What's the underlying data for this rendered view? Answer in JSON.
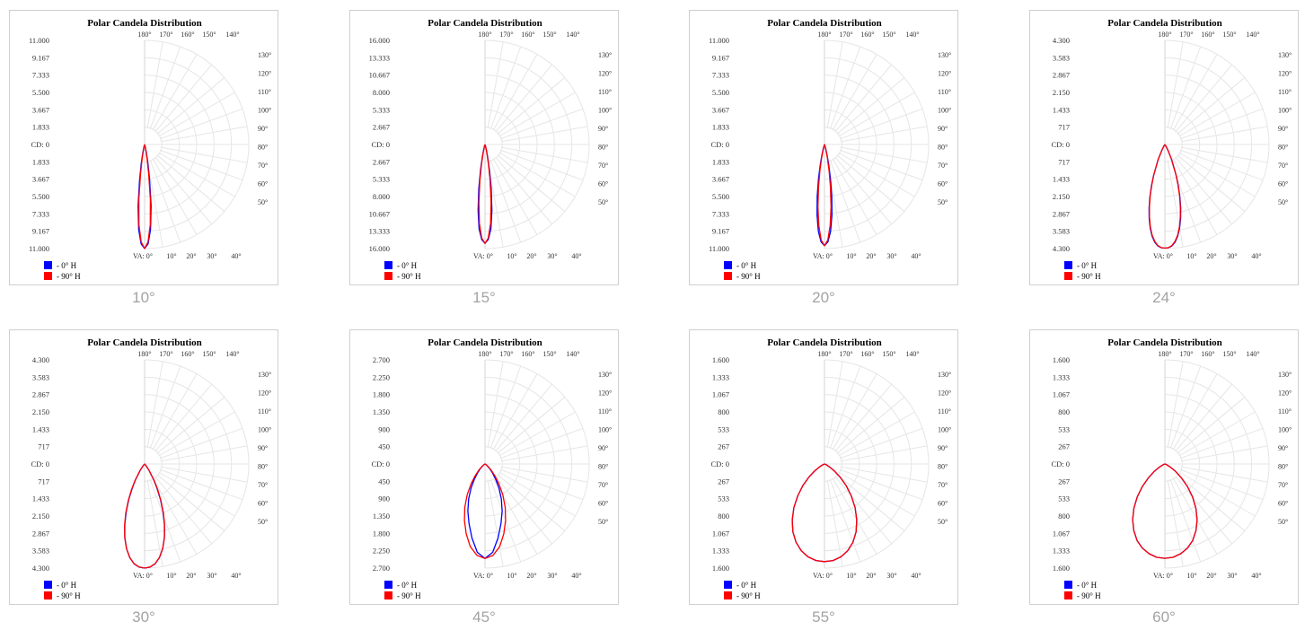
{
  "chart_data": [
    {
      "type": "polar",
      "title": "Polar Candela Distribution",
      "beam_label": "10°",
      "cd_ticks": [
        "11.000",
        "9.167",
        "7.333",
        "5.500",
        "3.667",
        "1.833",
        "CD: 0",
        "1.833",
        "3.667",
        "5.500",
        "7.333",
        "9.167",
        "11.000"
      ],
      "top_angle_labels": [
        "180°",
        "170°",
        "160°",
        "150°",
        "140°"
      ],
      "right_angle_labels": [
        "130°",
        "120°",
        "110°",
        "100°",
        "90°",
        "80°",
        "70°",
        "60°",
        "50°"
      ],
      "bottom_angle_labels": [
        "VA: 0°",
        "10°",
        "20°",
        "30°",
        "40°"
      ],
      "series": [
        {
          "name": "- 0° H",
          "color": "#0000ff",
          "angles": [
            0,
            2,
            4,
            6,
            8,
            10,
            12,
            14,
            16,
            18,
            20,
            25,
            30
          ],
          "values": [
            11000,
            10500,
            9000,
            6500,
            3800,
            2000,
            1000,
            450,
            200,
            90,
            40,
            10,
            0
          ]
        },
        {
          "name": "- 90° H",
          "color": "#ff0000",
          "angles": [
            0,
            2,
            4,
            6,
            8,
            10,
            12,
            14,
            16,
            18,
            20,
            25,
            30
          ],
          "values": [
            11000,
            10300,
            8500,
            5800,
            3100,
            1500,
            700,
            300,
            130,
            60,
            30,
            8,
            0
          ]
        }
      ]
    },
    {
      "type": "polar",
      "title": "Polar Candela Distribution",
      "beam_label": "15°",
      "cd_ticks": [
        "16.000",
        "13.333",
        "10.667",
        "8.000",
        "5.333",
        "2.667",
        "CD: 0",
        "2.667",
        "5.333",
        "8.000",
        "10.667",
        "13.333",
        "16.000"
      ],
      "top_angle_labels": [
        "180°",
        "170°",
        "160°",
        "150°",
        "140°"
      ],
      "right_angle_labels": [
        "130°",
        "120°",
        "110°",
        "100°",
        "90°",
        "80°",
        "70°",
        "60°",
        "50°"
      ],
      "bottom_angle_labels": [
        "VA: 0°",
        "10°",
        "20°",
        "30°",
        "40°"
      ],
      "series": [
        {
          "name": "- 0° H",
          "color": "#0000ff",
          "angles": [
            0,
            2,
            4,
            6,
            8,
            10,
            12,
            14,
            16,
            18,
            20,
            25,
            30
          ],
          "values": [
            15200,
            14600,
            13000,
            10200,
            6800,
            3900,
            2000,
            900,
            400,
            160,
            60,
            15,
            0
          ]
        },
        {
          "name": "- 90° H",
          "color": "#ff0000",
          "angles": [
            0,
            2,
            4,
            6,
            8,
            10,
            12,
            14,
            16,
            18,
            20,
            25,
            30
          ],
          "values": [
            15200,
            14400,
            12200,
            9000,
            5600,
            3000,
            1400,
            600,
            250,
            100,
            40,
            10,
            0
          ]
        }
      ]
    },
    {
      "type": "polar",
      "title": "Polar Candela Distribution",
      "beam_label": "20°",
      "cd_ticks": [
        "11.000",
        "9.167",
        "7.333",
        "5.500",
        "3.667",
        "1.833",
        "CD: 0",
        "1.833",
        "3.667",
        "5.500",
        "7.333",
        "9.167",
        "11.000"
      ],
      "top_angle_labels": [
        "180°",
        "170°",
        "160°",
        "150°",
        "140°"
      ],
      "right_angle_labels": [
        "130°",
        "120°",
        "110°",
        "100°",
        "90°",
        "80°",
        "70°",
        "60°",
        "50°"
      ],
      "bottom_angle_labels": [
        "VA: 0°",
        "10°",
        "20°",
        "30°",
        "40°"
      ],
      "series": [
        {
          "name": "- 0° H",
          "color": "#0000ff",
          "angles": [
            0,
            2,
            4,
            6,
            8,
            10,
            12,
            14,
            16,
            18,
            20,
            25,
            30
          ],
          "values": [
            10700,
            10300,
            9200,
            7500,
            5500,
            3600,
            2100,
            1100,
            500,
            220,
            90,
            20,
            0
          ]
        },
        {
          "name": "- 90° H",
          "color": "#ff0000",
          "angles": [
            0,
            2,
            4,
            6,
            8,
            10,
            12,
            14,
            16,
            18,
            20,
            25,
            30
          ],
          "values": [
            10700,
            10100,
            8600,
            6600,
            4500,
            2800,
            1500,
            700,
            300,
            120,
            50,
            12,
            0
          ]
        }
      ]
    },
    {
      "type": "polar",
      "title": "Polar Candela Distribution",
      "beam_label": "24°",
      "cd_ticks": [
        "4.300",
        "3.583",
        "2.867",
        "2.150",
        "1.433",
        "717",
        "CD: 0",
        "717",
        "1.433",
        "2.150",
        "2.867",
        "3.583",
        "4.300"
      ],
      "top_angle_labels": [
        "180°",
        "170°",
        "160°",
        "150°",
        "140°"
      ],
      "right_angle_labels": [
        "130°",
        "120°",
        "110°",
        "100°",
        "90°",
        "80°",
        "70°",
        "60°",
        "50°"
      ],
      "bottom_angle_labels": [
        "VA: 0°",
        "10°",
        "20°",
        "30°",
        "40°"
      ],
      "series": [
        {
          "name": "- 0° H",
          "color": "#0000ff",
          "angles": [
            0,
            2,
            4,
            6,
            8,
            10,
            12,
            14,
            16,
            18,
            20,
            24,
            28,
            32,
            36,
            40
          ],
          "values": [
            4280,
            4270,
            4200,
            4050,
            3820,
            3500,
            3120,
            2700,
            2250,
            1800,
            1380,
            700,
            280,
            80,
            15,
            0
          ]
        },
        {
          "name": "- 90° H",
          "color": "#ff0000",
          "angles": [
            0,
            2,
            4,
            6,
            8,
            10,
            12,
            14,
            16,
            18,
            20,
            24,
            28,
            32,
            36,
            40
          ],
          "values": [
            4280,
            4260,
            4180,
            4020,
            3780,
            3450,
            3060,
            2640,
            2190,
            1740,
            1330,
            670,
            270,
            75,
            14,
            0
          ]
        }
      ]
    },
    {
      "type": "polar",
      "title": "Polar Candela Distribution",
      "beam_label": "30°",
      "cd_ticks": [
        "4.300",
        "3.583",
        "2.867",
        "2.150",
        "1.433",
        "717",
        "CD: 0",
        "717",
        "1.433",
        "2.150",
        "2.867",
        "3.583",
        "4.300"
      ],
      "top_angle_labels": [
        "180°",
        "170°",
        "160°",
        "150°",
        "140°"
      ],
      "right_angle_labels": [
        "130°",
        "120°",
        "110°",
        "100°",
        "90°",
        "80°",
        "70°",
        "60°",
        "50°"
      ],
      "bottom_angle_labels": [
        "VA: 0°",
        "10°",
        "20°",
        "30°",
        "40°"
      ],
      "series": [
        {
          "name": "- 0° H",
          "color": "#0000ff",
          "angles": [
            0,
            3,
            6,
            9,
            12,
            15,
            18,
            21,
            24,
            27,
            30,
            35,
            40,
            45,
            50
          ],
          "values": [
            4300,
            4270,
            4150,
            3920,
            3580,
            3150,
            2650,
            2120,
            1600,
            1130,
            740,
            300,
            90,
            20,
            0
          ]
        },
        {
          "name": "- 90° H",
          "color": "#ff0000",
          "angles": [
            0,
            3,
            6,
            9,
            12,
            15,
            18,
            21,
            24,
            27,
            30,
            35,
            40,
            45,
            50
          ],
          "values": [
            4300,
            4260,
            4140,
            3910,
            3580,
            3160,
            2680,
            2170,
            1660,
            1190,
            790,
            330,
            100,
            22,
            0
          ]
        }
      ]
    },
    {
      "type": "polar",
      "title": "Polar Candela Distribution",
      "beam_label": "45°",
      "cd_ticks": [
        "2.700",
        "2.250",
        "1.800",
        "1.350",
        "900",
        "450",
        "CD: 0",
        "450",
        "900",
        "1.350",
        "1.800",
        "2.250",
        "2.700"
      ],
      "top_angle_labels": [
        "180°",
        "170°",
        "160°",
        "150°",
        "140°"
      ],
      "right_angle_labels": [
        "130°",
        "120°",
        "110°",
        "100°",
        "90°",
        "80°",
        "70°",
        "60°",
        "50°"
      ],
      "bottom_angle_labels": [
        "VA: 0°",
        "10°",
        "20°",
        "30°",
        "40°"
      ],
      "series": [
        {
          "name": "- 0° H",
          "color": "#0000ff",
          "angles": [
            0,
            5,
            10,
            15,
            20,
            25,
            30,
            35,
            40,
            45,
            50,
            55,
            60,
            65,
            70
          ],
          "values": [
            2450,
            2300,
            1950,
            1600,
            1300,
            1000,
            720,
            480,
            300,
            170,
            80,
            30,
            10,
            3,
            0
          ]
        },
        {
          "name": "- 90° H",
          "color": "#ff0000",
          "angles": [
            0,
            5,
            10,
            15,
            20,
            25,
            30,
            35,
            40,
            45,
            50,
            55,
            60,
            65,
            70
          ],
          "values": [
            2450,
            2380,
            2180,
            1880,
            1560,
            1240,
            920,
            630,
            400,
            230,
            110,
            45,
            15,
            4,
            0
          ]
        }
      ]
    },
    {
      "type": "polar",
      "title": "Polar Candela Distribution",
      "beam_label": "55°",
      "cd_ticks": [
        "1.600",
        "1.333",
        "1.067",
        "800",
        "533",
        "267",
        "CD: 0",
        "267",
        "533",
        "800",
        "1.067",
        "1.333",
        "1.600"
      ],
      "top_angle_labels": [
        "180°",
        "170°",
        "160°",
        "150°",
        "140°"
      ],
      "right_angle_labels": [
        "130°",
        "120°",
        "110°",
        "100°",
        "90°",
        "80°",
        "70°",
        "60°",
        "50°"
      ],
      "bottom_angle_labels": [
        "VA: 0°",
        "10°",
        "20°",
        "30°",
        "40°"
      ],
      "series": [
        {
          "name": "- 0° H",
          "color": "#0000ff",
          "angles": [
            0,
            5,
            10,
            15,
            20,
            25,
            30,
            35,
            40,
            45,
            50,
            55,
            60,
            65,
            70,
            75
          ],
          "values": [
            1500,
            1490,
            1450,
            1380,
            1280,
            1150,
            990,
            820,
            640,
            470,
            310,
            180,
            85,
            30,
            8,
            0
          ]
        },
        {
          "name": "- 90° H",
          "color": "#ff0000",
          "angles": [
            0,
            5,
            10,
            15,
            20,
            25,
            30,
            35,
            40,
            45,
            50,
            55,
            60,
            65,
            70,
            75
          ],
          "values": [
            1500,
            1490,
            1450,
            1380,
            1280,
            1150,
            990,
            820,
            640,
            470,
            310,
            180,
            85,
            30,
            8,
            0
          ]
        }
      ]
    },
    {
      "type": "polar",
      "title": "Polar Candela Distribution",
      "beam_label": "60°",
      "cd_ticks": [
        "1.600",
        "1.333",
        "1.067",
        "800",
        "533",
        "267",
        "CD: 0",
        "267",
        "533",
        "800",
        "1.067",
        "1.333",
        "1.600"
      ],
      "top_angle_labels": [
        "180°",
        "170°",
        "160°",
        "150°",
        "140°"
      ],
      "right_angle_labels": [
        "130°",
        "120°",
        "110°",
        "100°",
        "90°",
        "80°",
        "70°",
        "60°",
        "50°"
      ],
      "bottom_angle_labels": [
        "VA: 0°",
        "10°",
        "20°",
        "30°",
        "40°"
      ],
      "series": [
        {
          "name": "- 0° H",
          "color": "#0000ff",
          "angles": [
            0,
            5,
            10,
            15,
            20,
            25,
            30,
            35,
            40,
            45,
            50,
            55,
            60,
            65,
            70,
            75
          ],
          "values": [
            1450,
            1440,
            1400,
            1340,
            1250,
            1130,
            990,
            830,
            660,
            490,
            330,
            200,
            95,
            35,
            10,
            0
          ]
        },
        {
          "name": "- 90° H",
          "color": "#ff0000",
          "angles": [
            0,
            5,
            10,
            15,
            20,
            25,
            30,
            35,
            40,
            45,
            50,
            55,
            60,
            65,
            70,
            75
          ],
          "values": [
            1450,
            1440,
            1400,
            1340,
            1250,
            1130,
            990,
            830,
            660,
            490,
            330,
            200,
            95,
            35,
            10,
            0
          ]
        }
      ]
    }
  ]
}
